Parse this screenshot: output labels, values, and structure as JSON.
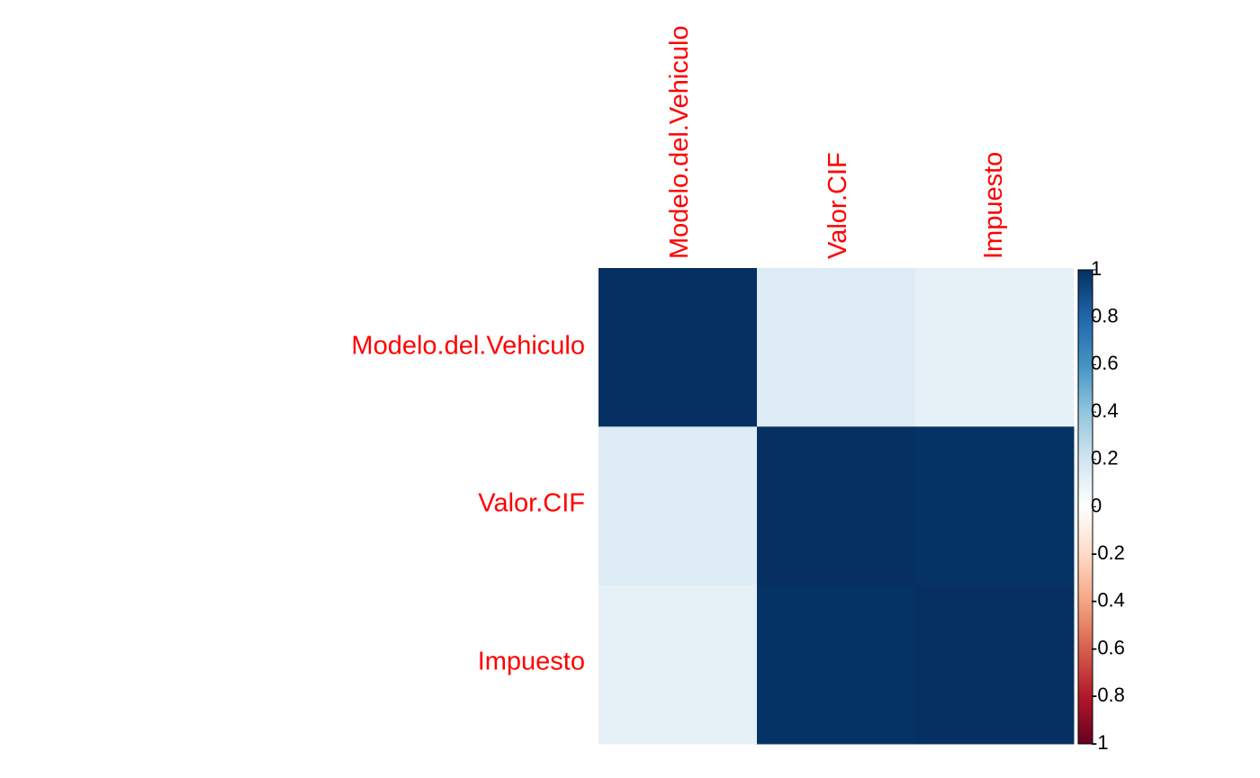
{
  "chart_data": {
    "type": "heatmap",
    "title": "",
    "variables": [
      "Modelo.del.Vehiculo",
      "Valor.CIF",
      "Impuesto"
    ],
    "matrix": [
      [
        1.0,
        0.15,
        0.11
      ],
      [
        0.15,
        1.0,
        0.99
      ],
      [
        0.11,
        0.99,
        1.0
      ]
    ],
    "color_scale": {
      "range": [
        -1,
        1
      ],
      "tick_labels": [
        "-1",
        "-0.8",
        "-0.6",
        "-0.4",
        "-0.2",
        "0",
        "0.2",
        "0.4",
        "0.6",
        "0.8",
        "1"
      ],
      "tick_values": [
        -1,
        -0.8,
        -0.6,
        -0.4,
        -0.2,
        0,
        0.2,
        0.4,
        0.6,
        0.8,
        1
      ],
      "colors": [
        "#67001f",
        "#b2182b",
        "#d6604d",
        "#f4a582",
        "#fddbc7",
        "#ffffff",
        "#d1e5f0",
        "#92c5de",
        "#4393c3",
        "#2166ac",
        "#053061"
      ]
    },
    "label_color": "#ff0000"
  }
}
